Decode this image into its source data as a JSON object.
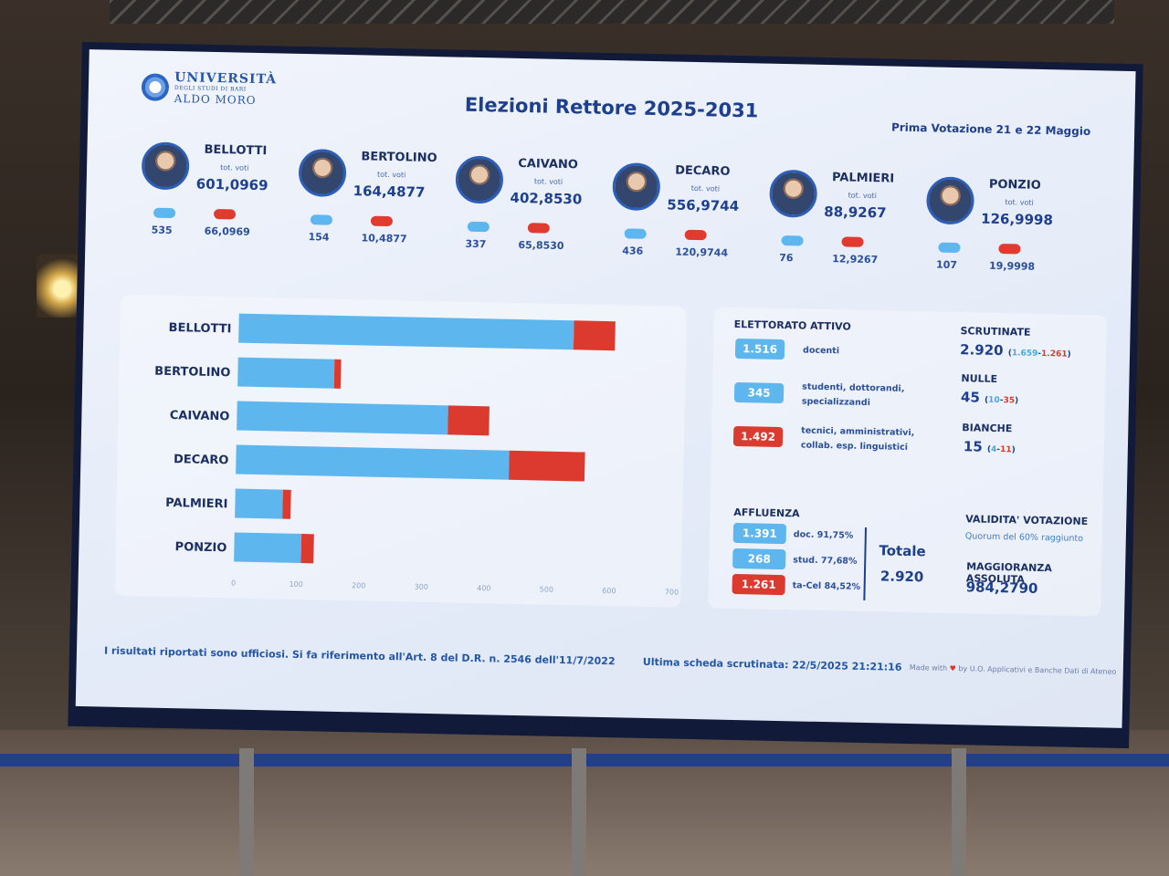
{
  "header": {
    "logo_line1": "UNIVERSITÀ",
    "logo_line2": "DEGLI STUDI DI BARI",
    "logo_line3": "ALDO MORO",
    "title": "Elezioni Rettore 2025-2031",
    "subtitle": "Prima Votazione 21 e 22 Maggio"
  },
  "candidates": [
    {
      "name": "BELLOTTI",
      "tot_label": "tot. voti",
      "total": "601,0969",
      "blue": "535",
      "red": "66,0969"
    },
    {
      "name": "BERTOLINO",
      "tot_label": "tot. voti",
      "total": "164,4877",
      "blue": "154",
      "red": "10,4877"
    },
    {
      "name": "CAIVANO",
      "tot_label": "tot. voti",
      "total": "402,8530",
      "blue": "337",
      "red": "65,8530"
    },
    {
      "name": "DECARO",
      "tot_label": "tot. voti",
      "total": "556,9744",
      "blue": "436",
      "red": "120,9744"
    },
    {
      "name": "PALMIERI",
      "tot_label": "tot. voti",
      "total": "88,9267",
      "blue": "76",
      "red": "12,9267"
    },
    {
      "name": "PONZIO",
      "tot_label": "tot. voti",
      "total": "126,9998",
      "blue": "107",
      "red": "19,9998"
    }
  ],
  "chart_data": {
    "type": "bar",
    "orientation": "horizontal",
    "stacked": true,
    "categories": [
      "BELLOTTI",
      "BERTOLINO",
      "CAIVANO",
      "DECARO",
      "PALMIERI",
      "PONZIO"
    ],
    "series": [
      {
        "values": [
          535,
          154,
          337,
          436,
          76,
          107
        ],
        "color": "#5eb6ee"
      },
      {
        "values": [
          66.0969,
          10.4877,
          65.853,
          120.9744,
          12.9267,
          19.9998
        ],
        "color": "#dc3a2e"
      }
    ],
    "xticks": [
      0,
      100,
      200,
      300,
      400,
      500,
      600,
      700
    ],
    "xlim": [
      0,
      700
    ],
    "grid": false
  },
  "elettorato": {
    "title": "ELETTORATO ATTIVO",
    "rows": [
      {
        "value": "1.516",
        "line1": "docenti",
        "line2": ""
      },
      {
        "value": "345",
        "line1": "studenti, dottorandi,",
        "line2": "specializzandi"
      },
      {
        "value": "1.492",
        "line1": "tecnici, amministrativi,",
        "line2": "collab. esp. linguistici"
      }
    ]
  },
  "scrutinio": {
    "scrutinate_label": "SCRUTINATE",
    "scrutinate_value": "2.920",
    "scrutinate_a": "1.659",
    "scrutinate_b": "1.261",
    "nulle_label": "NULLE",
    "nulle_value": "45",
    "nulle_a": "10",
    "nulle_b": "35",
    "bianche_label": "BIANCHE",
    "bianche_value": "15",
    "bianche_a": "4",
    "bianche_b": "11"
  },
  "affluenza": {
    "title": "AFFLUENZA",
    "rows": [
      {
        "value": "1.391",
        "label": "doc. 91,75%"
      },
      {
        "value": "268",
        "label": "stud. 77,68%"
      },
      {
        "value": "1.261",
        "label": "ta-Cel 84,52%"
      }
    ],
    "totale_label": "Totale",
    "totale_value": "2.920"
  },
  "validita": {
    "title": "VALIDITA' VOTAZIONE",
    "quorum_text": "Quorum del 60% raggiunto",
    "maggioranza_title": "MAGGIORANZA ASSOLUTA",
    "maggioranza_value": "984,2790"
  },
  "footer": {
    "disclaimer": "I risultati riportati sono ufficiosi. Si fa riferimento all'Art. 8 del D.R. n. 2546 dell'11/7/2022",
    "last_ballot": "Ultima scheda scrutinata: 22/5/2025 21:21:16",
    "made_with": "Made with",
    "made_by": "by U.O. Applicativi e Banche Dati di Ateneo"
  }
}
